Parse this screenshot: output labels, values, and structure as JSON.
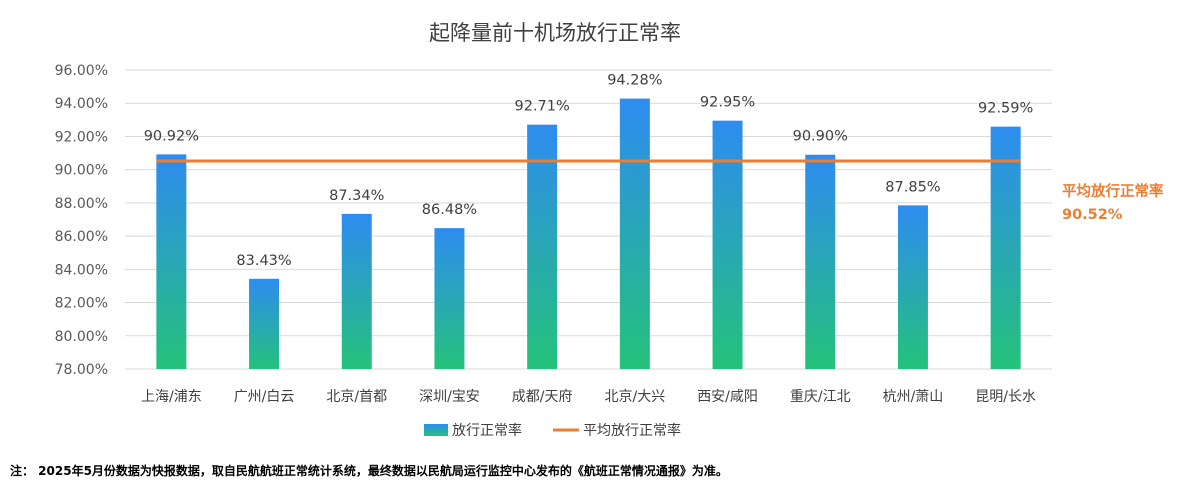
{
  "chart_data": {
    "type": "bar",
    "title": "起降量前十机场放行正常率",
    "categories": [
      "上海/浦东",
      "广州/白云",
      "北京/首都",
      "深圳/宝安",
      "成都/天府",
      "北京/大兴",
      "西安/咸阳",
      "重庆/江北",
      "杭州/萧山",
      "昆明/长水"
    ],
    "series": [
      {
        "name": "放行正常率",
        "values": [
          90.92,
          83.43,
          87.34,
          86.48,
          92.71,
          94.28,
          92.95,
          90.9,
          87.85,
          92.59
        ],
        "labels": [
          "90.92%",
          "83.43%",
          "87.34%",
          "86.48%",
          "92.71%",
          "94.28%",
          "92.95%",
          "90.90%",
          "87.85%",
          "92.59%"
        ]
      }
    ],
    "average": {
      "name": "平均放行正常率",
      "value": 90.52,
      "label_title": "平均放行正常率",
      "label_value": "90.52%"
    },
    "ylim": [
      78,
      96
    ],
    "yticks": [
      "78.00%",
      "80.00%",
      "82.00%",
      "84.00%",
      "86.00%",
      "88.00%",
      "90.00%",
      "92.00%",
      "94.00%",
      "96.00%"
    ],
    "grid": true,
    "legend_position": "bottom",
    "xlabel": "",
    "ylabel": ""
  },
  "colors": {
    "bar_top": "#2E8CF0",
    "bar_bottom": "#24C27A",
    "average_line": "#ED7D31",
    "grid": "#D9D9D9"
  },
  "note": "注：  2025年5月份数据为快报数据，取自民航航班正常统计系统，最终数据以民航局运行监控中心发布的《航班正常情况通报》为准。"
}
